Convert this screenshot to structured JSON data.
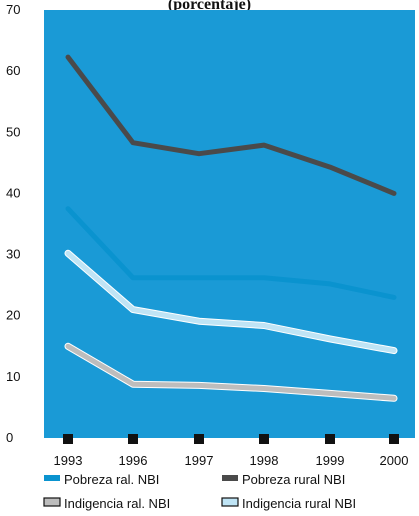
{
  "chart_data": {
    "type": "line",
    "title": "(porcentaje)",
    "x": [
      "1993",
      "1996",
      "1997",
      "1998",
      "1999",
      "2000"
    ],
    "ylim": [
      0,
      70
    ],
    "yticks": [
      "0",
      "10",
      "20",
      "30",
      "40",
      "50",
      "60",
      "70"
    ],
    "grid": false,
    "legend_position": "bottom",
    "series": [
      {
        "name": "Pobreza ral. NBI",
        "color": "#0a93cf",
        "style": "solid",
        "values": [
          37.5,
          26.2,
          26.2,
          26.2,
          25.2,
          23.0
        ]
      },
      {
        "name": "Pobreza rural NBI",
        "color": "#4a4a4a",
        "style": "solid",
        "values": [
          62.3,
          48.3,
          46.5,
          47.9,
          44.3,
          40.0
        ]
      },
      {
        "name": "Indigencia ral. NBI",
        "color": "#bdbdbd",
        "style": "outlined",
        "values": [
          15.0,
          8.8,
          8.6,
          8.1,
          7.3,
          6.5
        ]
      },
      {
        "name": "Indigencia rural NBI",
        "color": "#bfe4f5",
        "style": "outlined",
        "values": [
          30.2,
          21.0,
          19.1,
          18.4,
          16.2,
          14.3
        ]
      }
    ]
  },
  "colors": {
    "plot_background": "#1a9ad6"
  }
}
